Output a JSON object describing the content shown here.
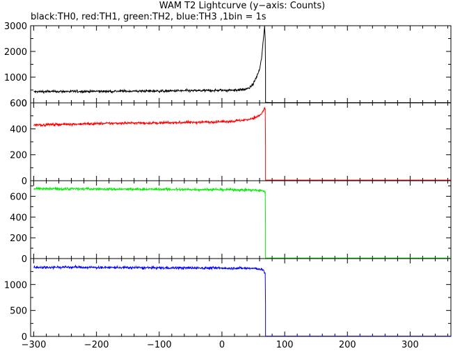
{
  "title": "WAM T2 Lightcurve (y−axis: Counts)",
  "subtitle": "black:TH0, red:TH1, green:TH2, blue:TH3 ,1bin = 1s",
  "chart_data": {
    "type": "line",
    "title": "WAM T2 Lightcurve (y−axis: Counts)",
    "subtitle": "black:TH0, red:TH1, green:TH2, blue:TH3 ,1bin = 1s",
    "xlim": [
      -305,
      365
    ],
    "x_ticks": [
      -300,
      -200,
      -100,
      0,
      100,
      200,
      300
    ],
    "x_tick_labels": [
      "−300",
      "−200",
      "−100",
      "0",
      "100",
      "200",
      "300"
    ],
    "grid": false,
    "panels": [
      {
        "name": "TH0",
        "color": "#000000",
        "ylim": [
          0,
          3000
        ],
        "y_ticks": [
          0,
          500,
          1000,
          1500,
          2000,
          2500,
          3000
        ],
        "y_tick_labels": [
          "0",
          "1000",
          "2000",
          "3000"
        ],
        "y_labeled_ticks": [
          0,
          1000,
          2000,
          3000
        ],
        "points": [
          [
            -300,
            430
          ],
          [
            -280,
            440
          ],
          [
            -260,
            440
          ],
          [
            -240,
            445
          ],
          [
            -220,
            445
          ],
          [
            -200,
            450
          ],
          [
            -180,
            450
          ],
          [
            -160,
            455
          ],
          [
            -140,
            455
          ],
          [
            -120,
            460
          ],
          [
            -100,
            460
          ],
          [
            -80,
            465
          ],
          [
            -60,
            470
          ],
          [
            -40,
            475
          ],
          [
            -20,
            480
          ],
          [
            0,
            490
          ],
          [
            10,
            495
          ],
          [
            20,
            500
          ],
          [
            30,
            510
          ],
          [
            40,
            540
          ],
          [
            45,
            600
          ],
          [
            50,
            750
          ],
          [
            55,
            1000
          ],
          [
            60,
            1300
          ],
          [
            63,
            1700
          ],
          [
            65,
            2200
          ],
          [
            67,
            2700
          ],
          [
            68,
            3000
          ],
          [
            69,
            2500
          ],
          [
            70,
            20
          ],
          [
            80,
            10
          ],
          [
            100,
            10
          ],
          [
            200,
            10
          ],
          [
            365,
            10
          ]
        ]
      },
      {
        "name": "TH1",
        "color": "#ff0000",
        "ylim": [
          0,
          600
        ],
        "y_ticks": [
          0,
          100,
          200,
          300,
          400,
          500,
          600
        ],
        "y_tick_labels": [
          "0",
          "200",
          "400",
          "600"
        ],
        "y_labeled_ticks": [
          0,
          200,
          400,
          600
        ],
        "points": [
          [
            -300,
            430
          ],
          [
            -250,
            435
          ],
          [
            -200,
            440
          ],
          [
            -150,
            445
          ],
          [
            -100,
            445
          ],
          [
            -50,
            450
          ],
          [
            0,
            455
          ],
          [
            20,
            460
          ],
          [
            40,
            470
          ],
          [
            55,
            490
          ],
          [
            62,
            510
          ],
          [
            66,
            540
          ],
          [
            68,
            560
          ],
          [
            69,
            550
          ],
          [
            70,
            5
          ],
          [
            100,
            5
          ],
          [
            200,
            5
          ],
          [
            365,
            5
          ]
        ]
      },
      {
        "name": "TH2",
        "color": "#00ee00",
        "ylim": [
          0,
          750
        ],
        "y_ticks": [
          0,
          100,
          200,
          300,
          400,
          500,
          600,
          700
        ],
        "y_tick_labels": [
          "0",
          "200",
          "400",
          "600"
        ],
        "y_labeled_ticks": [
          0,
          200,
          400,
          600
        ],
        "points": [
          [
            -300,
            670
          ],
          [
            -250,
            672
          ],
          [
            -200,
            670
          ],
          [
            -150,
            668
          ],
          [
            -100,
            668
          ],
          [
            -50,
            665
          ],
          [
            0,
            665
          ],
          [
            30,
            662
          ],
          [
            50,
            660
          ],
          [
            60,
            655
          ],
          [
            68,
            650
          ],
          [
            69,
            640
          ],
          [
            70,
            5
          ],
          [
            100,
            5
          ],
          [
            200,
            5
          ],
          [
            365,
            5
          ]
        ]
      },
      {
        "name": "TH3",
        "color": "#0000ff",
        "ylim": [
          0,
          1500
        ],
        "y_ticks": [
          0,
          250,
          500,
          750,
          1000,
          1250
        ],
        "y_tick_labels": [
          "0",
          "500",
          "1000"
        ],
        "y_labeled_ticks": [
          0,
          500,
          1000
        ],
        "points": [
          [
            -300,
            1330
          ],
          [
            -250,
            1335
          ],
          [
            -200,
            1330
          ],
          [
            -150,
            1325
          ],
          [
            -100,
            1320
          ],
          [
            -50,
            1320
          ],
          [
            0,
            1315
          ],
          [
            30,
            1315
          ],
          [
            50,
            1310
          ],
          [
            60,
            1300
          ],
          [
            66,
            1280
          ],
          [
            68,
            1220
          ],
          [
            69,
            1200
          ],
          [
            70,
            5
          ],
          [
            100,
            5
          ],
          [
            200,
            5
          ],
          [
            365,
            5
          ]
        ]
      }
    ]
  }
}
